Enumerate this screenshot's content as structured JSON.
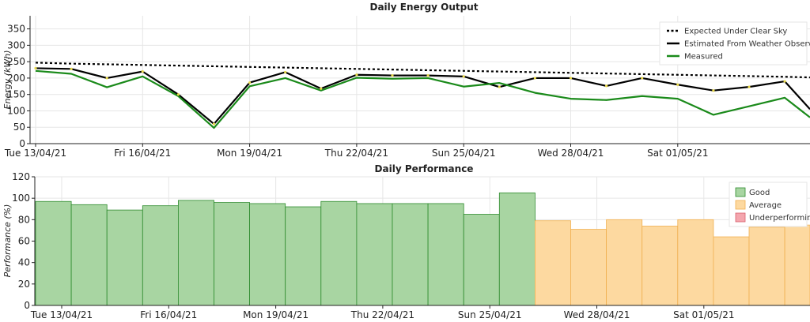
{
  "chart_data": [
    {
      "type": "line",
      "title": "Daily Energy Output",
      "ylabel": "Energy (kWh)",
      "xlabel": "",
      "ylim": [
        0,
        390
      ],
      "yticks": [
        0,
        50,
        100,
        150,
        200,
        250,
        300,
        350
      ],
      "x_tick_labels": [
        "Tue 13/04/21",
        "Fri 16/04/21",
        "Mon 19/04/21",
        "Thu 22/04/21",
        "Sun 25/04/21",
        "Wed 28/04/21",
        "Sat 01/05/21"
      ],
      "x_tick_dates": [
        "2021-04-13",
        "2021-04-16",
        "2021-04-19",
        "2021-04-22",
        "2021-04-25",
        "2021-04-28",
        "2021-05-01"
      ],
      "x": [
        "2021-04-13",
        "2021-04-14",
        "2021-04-15",
        "2021-04-16",
        "2021-04-17",
        "2021-04-18",
        "2021-04-19",
        "2021-04-20",
        "2021-04-21",
        "2021-04-22",
        "2021-04-23",
        "2021-04-24",
        "2021-04-25",
        "2021-04-26",
        "2021-04-27",
        "2021-04-28",
        "2021-04-29",
        "2021-04-30",
        "2021-05-01",
        "2021-05-02",
        "2021-05-03",
        "2021-05-04",
        "2021-05-05"
      ],
      "grid": true,
      "legend_position": "top-right",
      "series": [
        {
          "name": "Expected Under Clear Sky",
          "color": "#000000",
          "style": "dotted",
          "values": [
            247,
            244,
            242,
            240,
            238,
            236,
            234,
            232,
            230,
            228,
            226,
            224,
            222,
            220,
            218,
            216,
            214,
            212,
            210,
            208,
            206,
            204,
            202
          ]
        },
        {
          "name": "Estimated From Weather Observations",
          "color": "#000000",
          "style": "solid",
          "values": [
            230,
            228,
            200,
            220,
            150,
            60,
            186,
            218,
            168,
            210,
            208,
            208,
            205,
            173,
            200,
            200,
            176,
            200,
            180,
            162,
            173,
            190,
            105
          ]
        },
        {
          "name": "Measured",
          "color": "#1a8a1a",
          "style": "solid",
          "values": [
            222,
            213,
            172,
            205,
            145,
            48,
            175,
            200,
            162,
            201,
            198,
            200,
            174,
            185,
            155,
            137,
            133,
            145,
            137,
            88,
            114,
            140,
            80
          ]
        }
      ]
    },
    {
      "type": "bar",
      "title": "Daily Performance",
      "ylabel": "Performance (%)",
      "xlabel": "",
      "ylim": [
        0,
        120
      ],
      "yticks": [
        0,
        20,
        40,
        60,
        80,
        100,
        120
      ],
      "x_tick_labels": [
        "Tue 13/04/21",
        "Fri 16/04/21",
        "Mon 19/04/21",
        "Thu 22/04/21",
        "Sun 25/04/21",
        "Wed 28/04/21",
        "Sat 01/05/21"
      ],
      "x_tick_dates": [
        "2021-04-13",
        "2021-04-16",
        "2021-04-19",
        "2021-04-22",
        "2021-04-25",
        "2021-04-28",
        "2021-05-01"
      ],
      "categories": [
        "2021-04-13",
        "2021-04-14",
        "2021-04-15",
        "2021-04-16",
        "2021-04-17",
        "2021-04-18",
        "2021-04-19",
        "2021-04-20",
        "2021-04-21",
        "2021-04-22",
        "2021-04-23",
        "2021-04-24",
        "2021-04-25",
        "2021-04-26",
        "2021-04-27",
        "2021-04-28",
        "2021-04-29",
        "2021-04-30",
        "2021-05-01",
        "2021-05-02",
        "2021-05-03",
        "2021-05-04",
        "2021-05-05"
      ],
      "values": [
        97,
        94,
        89,
        93,
        98,
        96,
        95,
        92,
        97,
        95,
        95,
        95,
        85,
        105,
        79,
        71,
        80,
        74,
        80,
        64,
        73,
        75,
        76
      ],
      "classes": [
        "Good",
        "Good",
        "Good",
        "Good",
        "Good",
        "Good",
        "Good",
        "Good",
        "Good",
        "Good",
        "Good",
        "Good",
        "Good",
        "Good",
        "Average",
        "Average",
        "Average",
        "Average",
        "Average",
        "Average",
        "Average",
        "Average",
        "Average"
      ],
      "grid": true,
      "legend_position": "top-right",
      "legend": [
        {
          "name": "Good",
          "color": "#a8d5a2",
          "edge": "#2e8b2e"
        },
        {
          "name": "Average",
          "color": "#fdd9a0",
          "edge": "#f0b050"
        },
        {
          "name": "Underperforming",
          "color": "#f4a6ae",
          "edge": "#d9606c"
        }
      ]
    }
  ]
}
